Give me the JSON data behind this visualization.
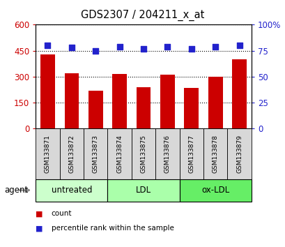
{
  "title": "GDS2307 / 204211_x_at",
  "samples": [
    "GSM133871",
    "GSM133872",
    "GSM133873",
    "GSM133874",
    "GSM133875",
    "GSM133876",
    "GSM133877",
    "GSM133878",
    "GSM133879"
  ],
  "counts": [
    430,
    320,
    220,
    315,
    240,
    310,
    235,
    300,
    400
  ],
  "percentiles": [
    80,
    78,
    75,
    79,
    77,
    79,
    77,
    79,
    80
  ],
  "bar_color": "#cc0000",
  "dot_color": "#2222cc",
  "ylim_left": [
    0,
    600
  ],
  "ylim_right": [
    0,
    100
  ],
  "yticks_left": [
    0,
    150,
    300,
    450,
    600
  ],
  "yticks_right": [
    0,
    25,
    50,
    75,
    100
  ],
  "ytick_labels_left": [
    "0",
    "150",
    "300",
    "450",
    "600"
  ],
  "ytick_labels_right": [
    "0",
    "25",
    "50",
    "75",
    "100%"
  ],
  "groups": [
    {
      "label": "untreated",
      "indices": [
        0,
        1,
        2
      ],
      "color": "#ccffcc"
    },
    {
      "label": "LDL",
      "indices": [
        3,
        4,
        5
      ],
      "color": "#aaffaa"
    },
    {
      "label": "ox-LDL",
      "indices": [
        6,
        7,
        8
      ],
      "color": "#66ee66"
    }
  ],
  "agent_label": "agent",
  "legend_items": [
    {
      "label": "count",
      "color": "#cc0000"
    },
    {
      "label": "percentile rank within the sample",
      "color": "#2222cc"
    }
  ],
  "plot_bg": "#ffffff",
  "background_color": "#ffffff",
  "sample_box_color": "#d8d8d8"
}
